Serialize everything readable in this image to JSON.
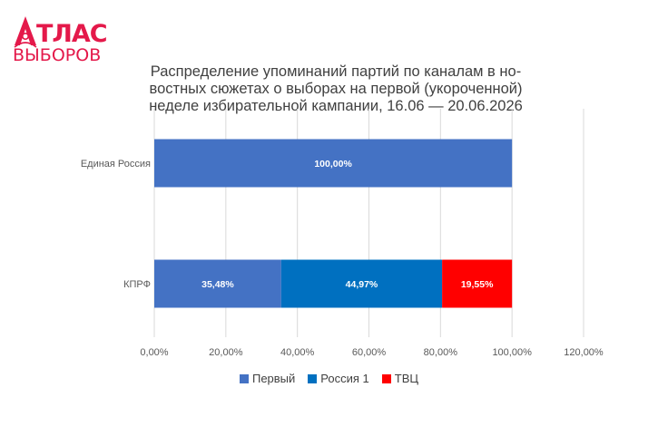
{
  "logo": {
    "line1": "ТЛАС",
    "line2": "ВЫБОРОВ"
  },
  "colors": {
    "brand": "#e4194a",
    "grid": "#d9d9d9",
    "text": "#595959"
  },
  "chart_data": {
    "type": "bar",
    "orientation": "horizontal",
    "stacked": true,
    "title": "Распределение упоминаний партий по каналам в но-востных сюжетах о выборах на первой (укороченной) неделе избирательной кампании, 16.06 — 20.06.2026",
    "title_lines": [
      "Распределение упоминаний партий по каналам в но-",
      "востных сюжетах о выборах на первой (укороченной)",
      "неделе избирательной кампании, 16.06 — 20.06.2026"
    ],
    "categories": [
      "Единая Россия",
      "КПРФ"
    ],
    "series": [
      {
        "name": "Первый",
        "color": "#4472c4",
        "values": [
          100,
          35.48
        ],
        "labels": [
          "100,00%",
          "35,48%"
        ]
      },
      {
        "name": "Россия 1",
        "color": "#0070c0",
        "values": [
          0,
          44.97
        ],
        "labels": [
          "",
          "44,97%"
        ]
      },
      {
        "name": "ТВЦ",
        "color": "#ff0000",
        "values": [
          0,
          19.55
        ],
        "labels": [
          "",
          "19,55%"
        ]
      }
    ],
    "xlim": [
      0,
      120
    ],
    "x_ticks": [
      0,
      20,
      40,
      60,
      80,
      100,
      120
    ],
    "x_tick_labels": [
      "0,00%",
      "20,00%",
      "40,00%",
      "60,00%",
      "80,00%",
      "100,00%",
      "120,00%"
    ],
    "grid": true,
    "legend_position": "bottom"
  }
}
